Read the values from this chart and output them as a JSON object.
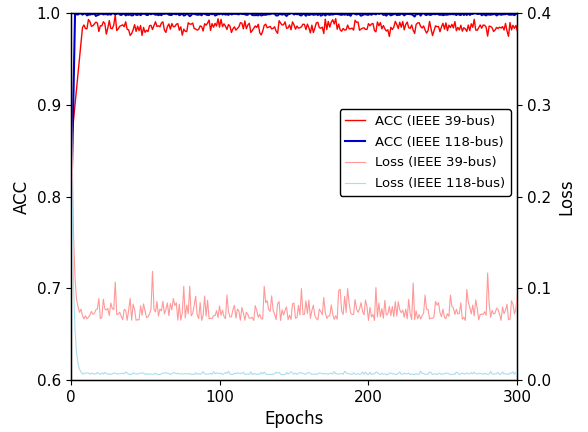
{
  "title": "",
  "xlabel": "Epochs",
  "ylabel_left": "ACC",
  "ylabel_right": "Loss",
  "xlim": [
    0,
    300
  ],
  "ylim_left": [
    0.6,
    1.0
  ],
  "ylim_right": [
    0.0,
    0.4
  ],
  "yticks_left": [
    0.6,
    0.7,
    0.8,
    0.9,
    1.0
  ],
  "yticks_right": [
    0.0,
    0.1,
    0.2,
    0.3,
    0.4
  ],
  "xticks": [
    0,
    100,
    200,
    300
  ],
  "n_epochs": 301,
  "colors": {
    "acc_39": "#FF0000",
    "acc_118": "#0000CC",
    "loss_39": "#FF9999",
    "loss_118": "#AADDEE"
  },
  "legend_labels": [
    "ACC (IEEE 39-bus)",
    "ACC (IEEE 118-bus)",
    "Loss (IEEE 39-bus)",
    "Loss (IEEE 118-bus)"
  ],
  "figsize": [
    5.88,
    4.32
  ],
  "dpi": 100
}
